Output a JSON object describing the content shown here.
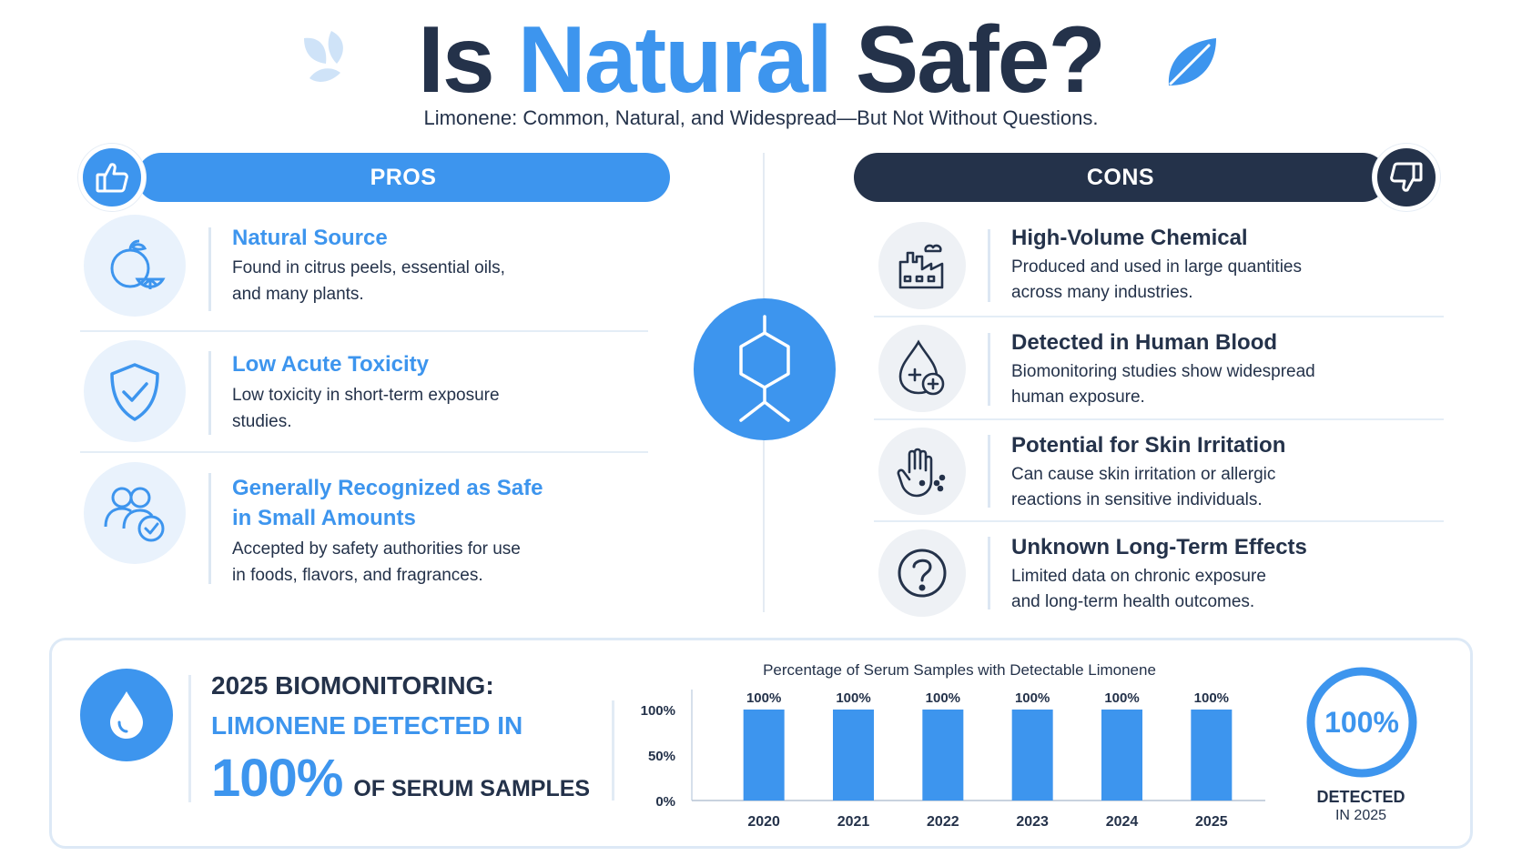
{
  "header": {
    "title_pre": "Is",
    "title_accent": "Natural",
    "title_post": "Safe?",
    "subtitle": "Limonene: Common, Natural, and Widespread—But Not Without Questions."
  },
  "pros": {
    "label": "PROS",
    "icon": "thumbs-up-icon",
    "items": [
      {
        "title": "Natural Source",
        "desc1": "Found in citrus peels, essential oils,",
        "desc2": "and many plants.",
        "icon": "citrus-icon"
      },
      {
        "title": "Low Acute Toxicity",
        "desc1": "Low toxicity in short-term exposure",
        "desc2": "studies.",
        "icon": "shield-check-icon"
      },
      {
        "title": "Generally Recognized as Safe",
        "title2": "in Small Amounts",
        "desc1": "Accepted by safety authorities for use",
        "desc2": "in foods, flavors, and fragrances.",
        "icon": "users-check-icon"
      }
    ]
  },
  "cons": {
    "label": "CONS",
    "icon": "thumbs-down-icon",
    "items": [
      {
        "title": "High-Volume Chemical",
        "desc1": "Produced and used in large quantities",
        "desc2": "across many industries.",
        "icon": "factory-icon"
      },
      {
        "title": "Detected in Human Blood",
        "desc1": "Biomonitoring studies show widespread",
        "desc2": "human exposure.",
        "icon": "blood-drop-icon"
      },
      {
        "title": "Potential for Skin Irritation",
        "desc1": "Can cause skin irritation or allergic",
        "desc2": "reactions in sensitive individuals.",
        "icon": "hand-irritation-icon"
      },
      {
        "title": "Unknown Long-Term Effects",
        "desc1": "Limited data on chronic exposure",
        "desc2": "and long-term health outcomes.",
        "icon": "question-icon"
      }
    ]
  },
  "biomonitoring": {
    "line1": "2025 BIOMONITORING:",
    "line2": "LIMONENE DETECTED IN",
    "pct": "100%",
    "tail": "OF SERUM SAMPLES",
    "ring_value": "100%",
    "ring_label1": "DETECTED",
    "ring_label2": "IN 2025"
  },
  "colors": {
    "accent": "#3d95ee",
    "dark": "#24324a"
  },
  "chart_data": {
    "type": "bar",
    "title": "Percentage of Serum Samples with Detectable Limonene",
    "categories": [
      "2020",
      "2021",
      "2022",
      "2023",
      "2024",
      "2025"
    ],
    "values": [
      100,
      100,
      100,
      100,
      100,
      100
    ],
    "data_labels": [
      "100%",
      "100%",
      "100%",
      "100%",
      "100%",
      "100%"
    ],
    "ytick_values": [
      0,
      50,
      100
    ],
    "ytick_labels": [
      "0%",
      "50%",
      "100%"
    ],
    "ylim": [
      0,
      100
    ],
    "grid": false,
    "color": "#3d95ee"
  }
}
